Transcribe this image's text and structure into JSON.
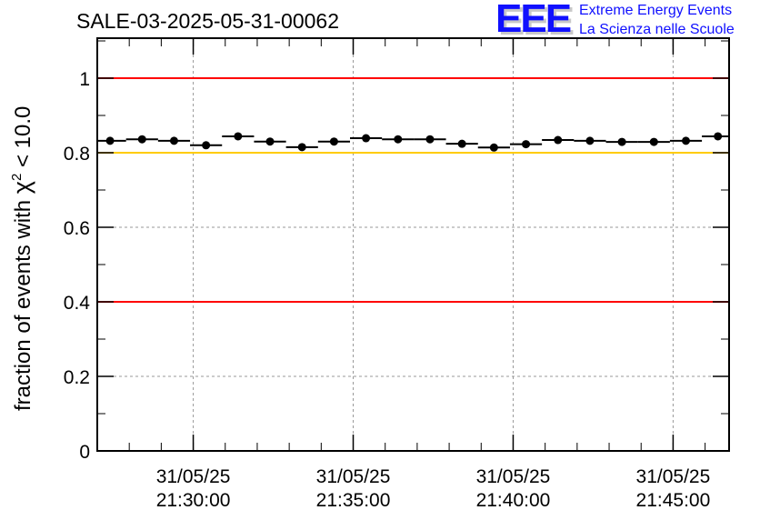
{
  "chart_data": {
    "type": "scatter",
    "title": "SALE-03-2025-05-31-00062",
    "xlabel": "",
    "ylabel": "fraction of events with χ² < 10.0",
    "ylabel_main": "fraction of events with ",
    "ylabel_chi": "χ",
    "ylabel_sup": "2",
    "ylabel_tail": " < 10.0",
    "ylim": [
      0,
      1.1
    ],
    "xlim_minutes_from_21_27_00": [
      0,
      19.75
    ],
    "bin_width_minutes": 1,
    "grid": true,
    "x_bin_centers": [
      "21:27:24",
      "21:28:24",
      "21:29:24",
      "21:30:24",
      "21:31:24",
      "21:32:24",
      "21:33:24",
      "21:34:24",
      "21:35:24",
      "21:36:24",
      "21:37:24",
      "21:38:24",
      "21:39:24",
      "21:40:24",
      "21:41:24",
      "21:42:24",
      "21:43:24",
      "21:44:24",
      "21:45:24",
      "21:46:24"
    ],
    "x_minutes": [
      0.4,
      1.4,
      2.4,
      3.4,
      4.4,
      5.4,
      6.4,
      7.4,
      8.4,
      9.4,
      10.4,
      11.4,
      12.4,
      13.4,
      14.4,
      15.4,
      16.4,
      17.4,
      18.4,
      19.4
    ],
    "values": [
      0.832,
      0.836,
      0.832,
      0.82,
      0.844,
      0.83,
      0.815,
      0.83,
      0.839,
      0.836,
      0.836,
      0.824,
      0.814,
      0.823,
      0.834,
      0.832,
      0.829,
      0.829,
      0.832,
      0.844
    ],
    "y_ticks": [
      "0",
      "0.2",
      "0.4",
      "0.6",
      "0.8",
      "1"
    ],
    "y_tick_values": [
      0,
      0.2,
      0.4,
      0.6,
      0.8,
      1
    ],
    "x_ticks": [
      {
        "minutes": 3,
        "date": "31/05/25",
        "time": "21:30:00"
      },
      {
        "minutes": 8,
        "date": "31/05/25",
        "time": "21:35:00"
      },
      {
        "minutes": 13,
        "date": "31/05/25",
        "time": "21:40:00"
      },
      {
        "minutes": 18,
        "date": "31/05/25",
        "time": "21:45:00"
      }
    ],
    "reference_lines": [
      {
        "y": 1.0,
        "color": "#ff0000"
      },
      {
        "y": 0.8,
        "color": "#ffcc00"
      },
      {
        "y": 0.4,
        "color": "#ff0000"
      }
    ]
  },
  "logo": {
    "letters": "EEE",
    "line1": "Extreme Energy Events",
    "line2": "La Scienza nelle Scuole"
  }
}
